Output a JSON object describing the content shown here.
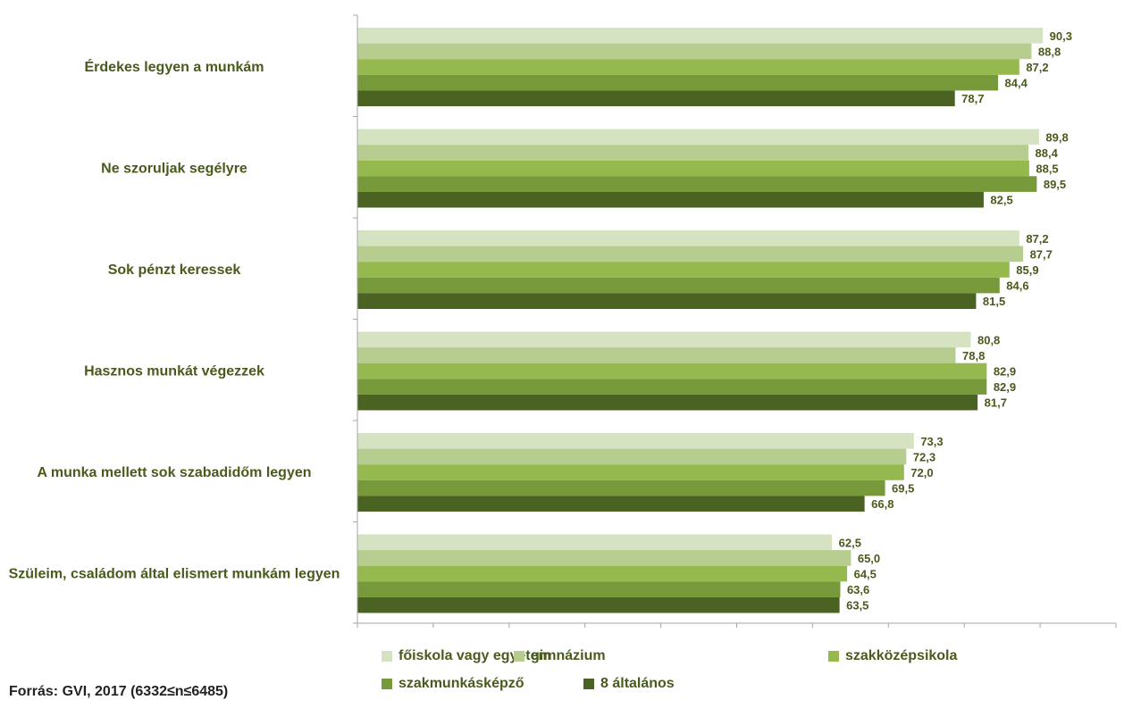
{
  "chart_data": {
    "type": "bar",
    "orientation": "horizontal",
    "categories": [
      "Érdekes legyen a munkám",
      "Ne szoruljak segélyre",
      "Sok pénzt keressek",
      "Hasznos munkát végezzek",
      "A munka mellett sok szabadidőm legyen",
      "Szüleim, családom által elismert munkám legyen"
    ],
    "series": [
      {
        "name": "főiskola vagy egyetem",
        "color": "#d6e3c3",
        "values": [
          90.3,
          89.8,
          87.2,
          80.8,
          73.3,
          62.5
        ],
        "labels": [
          "90,3",
          "89,8",
          "87,2",
          "80,8",
          "73,3",
          "62,5"
        ]
      },
      {
        "name": "gimnázium",
        "color": "#b7cd8f",
        "values": [
          88.8,
          88.4,
          87.7,
          78.8,
          72.3,
          65.0
        ],
        "labels": [
          "88,8",
          "88,4",
          "87,7",
          "78,8",
          "72,3",
          "65,0"
        ]
      },
      {
        "name": "szakközépsikola",
        "color": "#95b94f",
        "values": [
          87.2,
          88.5,
          85.9,
          82.9,
          72.0,
          64.5
        ],
        "labels": [
          "87,2",
          "88,5",
          "85,9",
          "82,9",
          "72,0",
          "64,5"
        ]
      },
      {
        "name": "szakmunkásképző",
        "color": "#77993a",
        "values": [
          84.4,
          89.5,
          84.6,
          82.9,
          69.5,
          63.6
        ],
        "labels": [
          "84,4",
          "89,5",
          "84,6",
          "82,9",
          "69,5",
          "63,6"
        ]
      },
      {
        "name": "8 általános",
        "color": "#4a6323",
        "values": [
          78.7,
          82.5,
          81.5,
          81.7,
          66.8,
          63.5
        ],
        "labels": [
          "78,7",
          "82,5",
          "81,5",
          "81,7",
          "66,8",
          "63,5"
        ]
      }
    ],
    "xlim": [
      0,
      100
    ],
    "xticks": [
      "0,0",
      "10,0",
      "20,0",
      "30,0",
      "40,0",
      "50,0",
      "60,0",
      "70,0",
      "80,0",
      "90,0",
      "100,0"
    ],
    "grid": false,
    "legend_position": "bottom"
  },
  "source_note": "Forrás: GVI, 2017 (6332≤n≤6485)"
}
